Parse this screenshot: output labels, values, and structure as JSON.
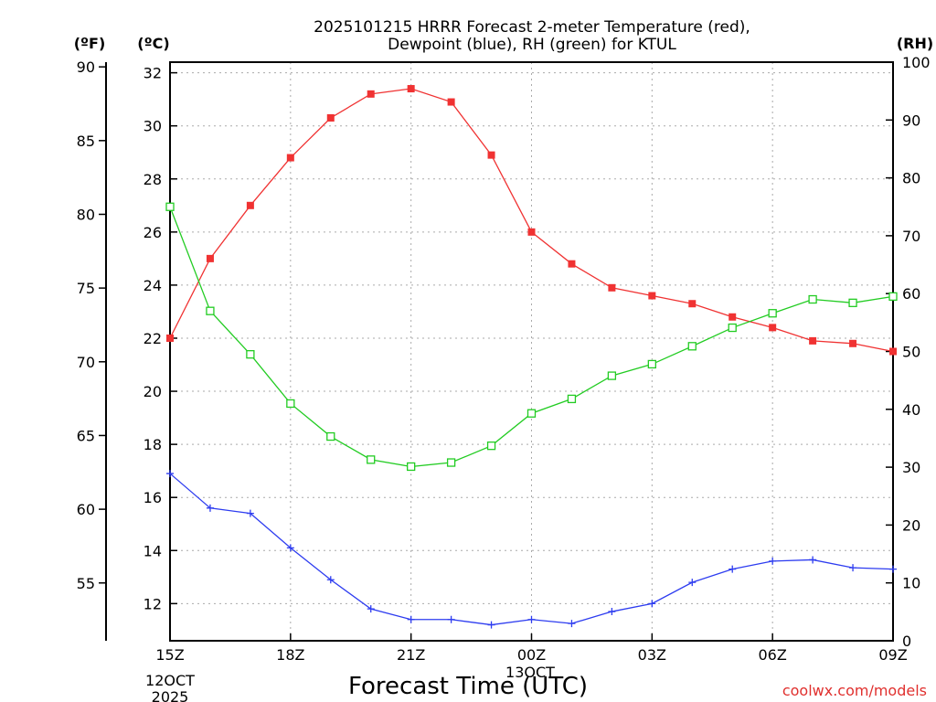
{
  "title_line1": "2025101215 HRRR Forecast 2-meter Temperature (red),",
  "title_line2": "Dewpoint (blue), RH (green) for KTUL",
  "xlabel": "Forecast Time (UTC)",
  "credit": "coolwx.com/models",
  "units": {
    "fahrenheit": "(ºF)",
    "celsius": "(ºC)",
    "rh": "(RH)"
  },
  "date_label": [
    "12OCT",
    "2025"
  ],
  "date_label2": "13OCT",
  "chart_data": {
    "type": "line",
    "x": [
      0,
      1,
      2,
      3,
      4,
      5,
      6,
      7,
      8,
      9,
      10,
      11,
      12,
      13,
      14,
      15,
      16,
      17,
      18
    ],
    "x_ticks": [
      {
        "x": 0,
        "label": "15Z"
      },
      {
        "x": 3,
        "label": "18Z"
      },
      {
        "x": 6,
        "label": "21Z"
      },
      {
        "x": 9,
        "label": "00Z"
      },
      {
        "x": 12,
        "label": "03Z"
      },
      {
        "x": 15,
        "label": "06Z"
      },
      {
        "x": 18,
        "label": "09Z"
      }
    ],
    "xlim": [
      0,
      18
    ],
    "y_celsius_ticks": [
      "12",
      "14",
      "16",
      "18",
      "20",
      "22",
      "24",
      "26",
      "28",
      "30",
      "32"
    ],
    "ylim_celsius": [
      10.6,
      32.4
    ],
    "y_fahrenheit_ticks": [
      "55",
      "60",
      "65",
      "70",
      "75",
      "80",
      "85",
      "90"
    ],
    "y_rh_ticks": [
      "0",
      "10",
      "20",
      "30",
      "40",
      "50",
      "60",
      "70",
      "80",
      "90",
      "100"
    ],
    "ylim_rh": [
      0,
      100
    ],
    "series": [
      {
        "name": "Temperature",
        "axis": "celsius",
        "color": "#f03232",
        "marker": "filled-square",
        "values": [
          22.0,
          25.0,
          27.0,
          28.8,
          30.3,
          31.2,
          31.4,
          30.9,
          28.9,
          26.0,
          24.8,
          23.9,
          23.6,
          23.3,
          22.8,
          22.4,
          21.9,
          21.8,
          21.5
        ]
      },
      {
        "name": "Dewpoint",
        "axis": "celsius",
        "color": "#2d3cf0",
        "marker": "plus",
        "values": [
          16.9,
          15.6,
          15.4,
          14.1,
          12.9,
          11.8,
          11.4,
          11.4,
          11.2,
          11.4,
          11.25,
          11.7,
          12.0,
          12.8,
          13.3,
          13.6,
          13.65,
          13.35,
          13.3
        ]
      },
      {
        "name": "RH",
        "axis": "rh",
        "color": "#22cc22",
        "marker": "open-square",
        "values": [
          75.0,
          57.0,
          49.5,
          41.0,
          35.3,
          31.3,
          30.1,
          30.8,
          33.7,
          39.3,
          41.8,
          45.8,
          47.8,
          50.9,
          54.1,
          56.6,
          59.0,
          58.4,
          59.5
        ]
      }
    ]
  }
}
